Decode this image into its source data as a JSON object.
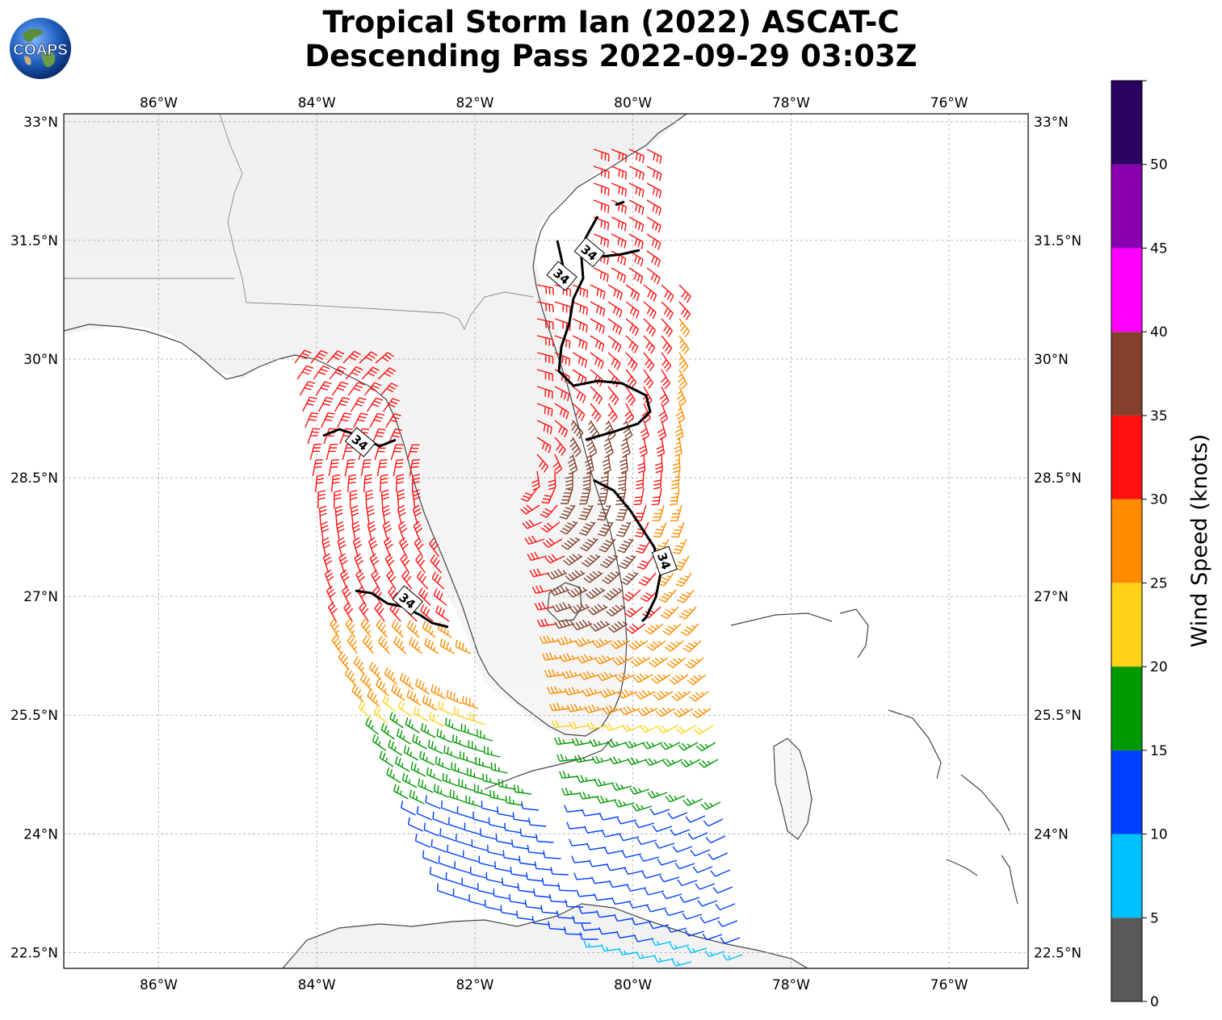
{
  "header": {
    "title_line1": "Tropical Storm Ian (2022) ASCAT-C",
    "title_line2": "Descending Pass 2022-09-29 03:03Z"
  },
  "logo": {
    "text": "COAPS",
    "icon": "globe-logo-icon"
  },
  "map": {
    "lon_range": [
      -87.2,
      -75.0
    ],
    "lat_range": [
      22.3,
      33.1
    ],
    "lon_ticks": [
      {
        "value": -86,
        "label": "86°W"
      },
      {
        "value": -84,
        "label": "84°W"
      },
      {
        "value": -82,
        "label": "82°W"
      },
      {
        "value": -80,
        "label": "80°W"
      },
      {
        "value": -78,
        "label": "78°W"
      },
      {
        "value": -76,
        "label": "76°W"
      }
    ],
    "lat_ticks": [
      {
        "value": 33,
        "label": "33°N"
      },
      {
        "value": 31.5,
        "label": "31.5°N"
      },
      {
        "value": 30,
        "label": "30°N"
      },
      {
        "value": 28.5,
        "label": "28.5°N"
      },
      {
        "value": 27,
        "label": "27°N"
      },
      {
        "value": 25.5,
        "label": "25.5°N"
      },
      {
        "value": 24,
        "label": "24°N"
      },
      {
        "value": 22.5,
        "label": "22.5°N"
      }
    ],
    "gridlines": true,
    "contour_label": "34",
    "contour_labels_lonlat": [
      [
        -80.55,
        31.35
      ],
      [
        -80.9,
        31.05
      ],
      [
        -83.45,
        28.95
      ],
      [
        -82.85,
        26.95
      ],
      [
        -79.6,
        27.45
      ]
    ]
  },
  "colorbar": {
    "label": "Wind Speed (knots)",
    "ticks": [
      "0",
      "5",
      "10",
      "15",
      "20",
      "25",
      "30",
      "35",
      "40",
      "45",
      "50"
    ],
    "bins": [
      {
        "min": 0,
        "max": 5,
        "color": "#595959"
      },
      {
        "min": 5,
        "max": 10,
        "color": "#00bfff"
      },
      {
        "min": 10,
        "max": 15,
        "color": "#0040ff"
      },
      {
        "min": 15,
        "max": 20,
        "color": "#009900"
      },
      {
        "min": 20,
        "max": 25,
        "color": "#ffd21a"
      },
      {
        "min": 25,
        "max": 30,
        "color": "#ff8c00"
      },
      {
        "min": 30,
        "max": 35,
        "color": "#ff1010"
      },
      {
        "min": 35,
        "max": 40,
        "color": "#84402c"
      },
      {
        "min": 40,
        "max": 45,
        "color": "#ff00ff"
      },
      {
        "min": 45,
        "max": 50,
        "color": "#8800b0"
      },
      {
        "min": 50,
        "max": 55,
        "color": "#2a0060"
      }
    ]
  }
}
